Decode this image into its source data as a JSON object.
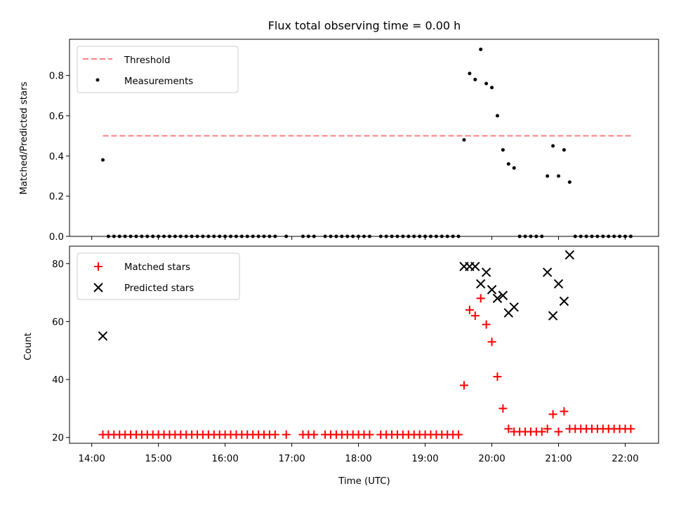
{
  "title": "Flux total observing time = 0.00 h",
  "chart_data": [
    {
      "type": "scatter",
      "ylabel": "Matched/Predicted stars",
      "ylim": [
        0,
        0.98
      ],
      "yticks": [
        0.0,
        0.2,
        0.4,
        0.6,
        0.8
      ],
      "ytick_labels": [
        "0.0",
        "0.2",
        "0.4",
        "0.6",
        "0.8"
      ],
      "legend_position": "top-left",
      "threshold": {
        "name": "Threshold",
        "value": 0.5,
        "x_start": "14:10",
        "x_end": "22:05",
        "color": "#ff7f7f"
      },
      "series": [
        {
          "name": "Measurements",
          "color": "#000000",
          "marker": "dot",
          "x": [
            "14:10",
            "14:15",
            "14:20",
            "14:25",
            "14:30",
            "14:35",
            "14:40",
            "14:45",
            "14:50",
            "14:55",
            "15:00",
            "15:05",
            "15:10",
            "15:15",
            "15:20",
            "15:25",
            "15:30",
            "15:35",
            "15:40",
            "15:45",
            "15:50",
            "15:55",
            "16:00",
            "16:05",
            "16:10",
            "16:15",
            "16:20",
            "16:25",
            "16:30",
            "16:35",
            "16:40",
            "16:45",
            "16:55",
            "17:10",
            "17:15",
            "17:20",
            "17:30",
            "17:35",
            "17:40",
            "17:45",
            "17:50",
            "17:55",
            "18:00",
            "18:05",
            "18:10",
            "18:20",
            "18:25",
            "18:30",
            "18:35",
            "18:40",
            "18:45",
            "18:50",
            "18:55",
            "19:00",
            "19:05",
            "19:10",
            "19:15",
            "19:20",
            "19:25",
            "19:30",
            "19:35",
            "19:40",
            "19:45",
            "19:50",
            "19:55",
            "20:00",
            "20:05",
            "20:10",
            "20:15",
            "20:20",
            "20:25",
            "20:30",
            "20:35",
            "20:40",
            "20:45",
            "20:50",
            "20:55",
            "21:00",
            "21:05",
            "21:10",
            "21:15",
            "21:20",
            "21:25",
            "21:30",
            "21:35",
            "21:40",
            "21:45",
            "21:50",
            "21:55",
            "22:00",
            "22:05"
          ],
          "y": [
            0.38,
            0,
            0,
            0,
            0,
            0,
            0,
            0,
            0,
            0,
            0,
            0,
            0,
            0,
            0,
            0,
            0,
            0,
            0,
            0,
            0,
            0,
            0,
            0,
            0,
            0,
            0,
            0,
            0,
            0,
            0,
            0,
            0,
            0,
            0,
            0,
            0,
            0,
            0,
            0,
            0,
            0,
            0,
            0,
            0,
            0,
            0,
            0,
            0,
            0,
            0,
            0,
            0,
            0,
            0,
            0,
            0,
            0,
            0,
            0,
            0.48,
            0.81,
            0.78,
            0.93,
            0.76,
            0.74,
            0.6,
            0.43,
            0.36,
            0.34,
            0,
            0,
            0,
            0,
            0,
            0.3,
            0.45,
            0.3,
            0.43,
            0.27,
            0,
            0,
            0,
            0,
            0,
            0,
            0,
            0,
            0,
            0,
            0
          ]
        }
      ]
    },
    {
      "type": "scatter",
      "xlabel": "Time (UTC)",
      "ylabel": "Count",
      "ylim": [
        18,
        86
      ],
      "yticks": [
        20,
        40,
        60,
        80
      ],
      "ytick_labels": [
        "20",
        "40",
        "60",
        "80"
      ],
      "xlim": [
        "13:40",
        "22:30"
      ],
      "xtick_labels": [
        "14:00",
        "15:00",
        "16:00",
        "17:00",
        "18:00",
        "19:00",
        "20:00",
        "21:00",
        "22:00"
      ],
      "legend_position": "top-left",
      "series": [
        {
          "name": "Matched stars",
          "color": "#ff0000",
          "marker": "plus",
          "x": [
            "14:10",
            "14:15",
            "14:20",
            "14:25",
            "14:30",
            "14:35",
            "14:40",
            "14:45",
            "14:50",
            "14:55",
            "15:00",
            "15:05",
            "15:10",
            "15:15",
            "15:20",
            "15:25",
            "15:30",
            "15:35",
            "15:40",
            "15:45",
            "15:50",
            "15:55",
            "16:00",
            "16:05",
            "16:10",
            "16:15",
            "16:20",
            "16:25",
            "16:30",
            "16:35",
            "16:40",
            "16:45",
            "16:55",
            "17:10",
            "17:15",
            "17:20",
            "17:30",
            "17:35",
            "17:40",
            "17:45",
            "17:50",
            "17:55",
            "18:00",
            "18:05",
            "18:10",
            "18:20",
            "18:25",
            "18:30",
            "18:35",
            "18:40",
            "18:45",
            "18:50",
            "18:55",
            "19:00",
            "19:05",
            "19:10",
            "19:15",
            "19:20",
            "19:25",
            "19:30",
            "19:35",
            "19:40",
            "19:45",
            "19:50",
            "19:55",
            "20:00",
            "20:05",
            "20:10",
            "20:15",
            "20:20",
            "20:25",
            "20:30",
            "20:35",
            "20:40",
            "20:45",
            "20:50",
            "20:55",
            "21:00",
            "21:05",
            "21:10",
            "21:15",
            "21:20",
            "21:25",
            "21:30",
            "21:35",
            "21:40",
            "21:45",
            "21:50",
            "21:55",
            "22:00",
            "22:05"
          ],
          "y": [
            21,
            21,
            21,
            21,
            21,
            21,
            21,
            21,
            21,
            21,
            21,
            21,
            21,
            21,
            21,
            21,
            21,
            21,
            21,
            21,
            21,
            21,
            21,
            21,
            21,
            21,
            21,
            21,
            21,
            21,
            21,
            21,
            21,
            21,
            21,
            21,
            21,
            21,
            21,
            21,
            21,
            21,
            21,
            21,
            21,
            21,
            21,
            21,
            21,
            21,
            21,
            21,
            21,
            21,
            21,
            21,
            21,
            21,
            21,
            21,
            38,
            64,
            62,
            68,
            59,
            53,
            41,
            30,
            23,
            22,
            22,
            22,
            22,
            22,
            22,
            23,
            28,
            22,
            29,
            23,
            23,
            23,
            23,
            23,
            23,
            23,
            23,
            23,
            23,
            23,
            23
          ]
        },
        {
          "name": "Predicted stars",
          "color": "#000000",
          "marker": "x",
          "x": [
            "14:10",
            "19:35",
            "19:40",
            "19:45",
            "19:50",
            "19:55",
            "20:00",
            "20:05",
            "20:10",
            "20:15",
            "20:20",
            "20:50",
            "20:55",
            "21:00",
            "21:05",
            "21:10"
          ],
          "y": [
            55,
            79,
            79,
            79,
            73,
            77,
            71,
            68,
            69,
            63,
            65,
            77,
            62,
            73,
            67,
            83
          ]
        }
      ]
    }
  ]
}
